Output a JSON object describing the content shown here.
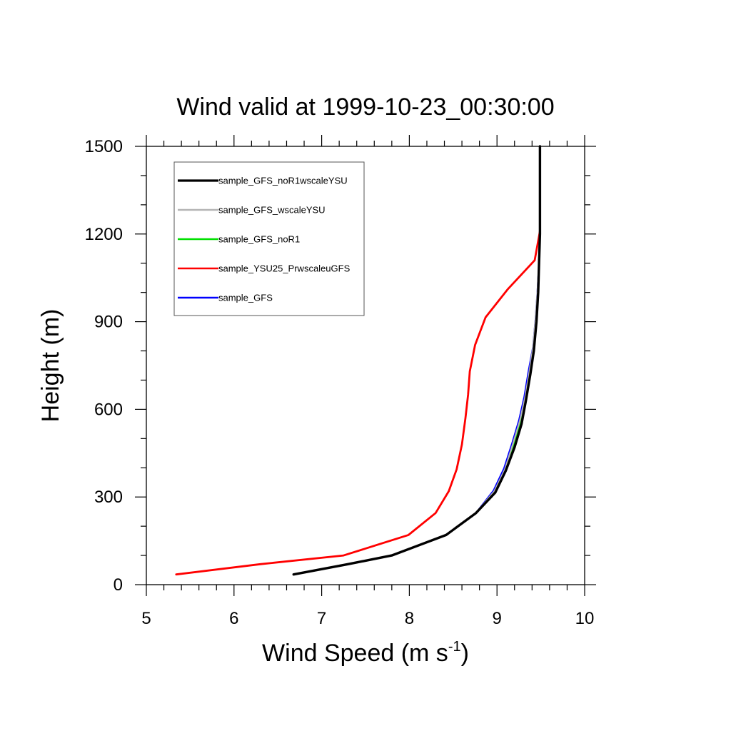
{
  "chart_data": {
    "type": "line",
    "title": "Wind valid at 1999-10-23_00:30:00",
    "xlabel_main": "Wind Speed (m s",
    "xlabel_sup": "-1",
    "xlabel_end": ")",
    "ylabel": "Height (m)",
    "xlim": [
      5,
      10
    ],
    "ylim": [
      0,
      1500
    ],
    "xticks": [
      "5",
      "6",
      "7",
      "8",
      "9",
      "10"
    ],
    "yticks": [
      "0",
      "300",
      "600",
      "900",
      "1200",
      "1500"
    ],
    "legend_position": "top-left",
    "series": [
      {
        "name": "sample_GFS_noR1wscaleYSU",
        "color": "#000000",
        "points": [
          [
            6.68,
            35
          ],
          [
            7.3,
            70
          ],
          [
            7.8,
            100
          ],
          [
            8.42,
            170
          ],
          [
            8.76,
            245
          ],
          [
            8.98,
            315
          ],
          [
            9.1,
            390
          ],
          [
            9.2,
            470
          ],
          [
            9.28,
            550
          ],
          [
            9.33,
            630
          ],
          [
            9.38,
            720
          ],
          [
            9.42,
            800
          ],
          [
            9.45,
            900
          ],
          [
            9.47,
            1000
          ],
          [
            9.48,
            1100
          ],
          [
            9.49,
            1200
          ],
          [
            9.49,
            1300
          ],
          [
            9.49,
            1400
          ],
          [
            9.49,
            1500
          ]
        ]
      },
      {
        "name": "sample_GFS_wscaleYSU",
        "color": "#b4b4b4",
        "points": [
          [
            6.68,
            35
          ],
          [
            7.3,
            70
          ],
          [
            7.8,
            100
          ],
          [
            8.42,
            170
          ],
          [
            8.76,
            245
          ],
          [
            8.97,
            320
          ],
          [
            9.09,
            395
          ],
          [
            9.18,
            480
          ],
          [
            9.26,
            560
          ],
          [
            9.32,
            640
          ],
          [
            9.37,
            730
          ],
          [
            9.41,
            810
          ],
          [
            9.44,
            910
          ],
          [
            9.46,
            1000
          ],
          [
            9.48,
            1100
          ],
          [
            9.49,
            1200
          ]
        ]
      },
      {
        "name": "sample_GFS_noR1",
        "color": "#00e000",
        "points": [
          [
            6.68,
            35
          ],
          [
            7.3,
            70
          ],
          [
            7.8,
            100
          ],
          [
            8.42,
            170
          ],
          [
            8.76,
            245
          ],
          [
            8.98,
            318
          ],
          [
            9.1,
            392
          ],
          [
            9.19,
            475
          ],
          [
            9.27,
            555
          ],
          [
            9.33,
            635
          ],
          [
            9.38,
            725
          ],
          [
            9.42,
            805
          ],
          [
            9.45,
            905
          ],
          [
            9.47,
            1000
          ],
          [
            9.48,
            1100
          ],
          [
            9.49,
            1200
          ]
        ]
      },
      {
        "name": "sample_YSU25_PrwscaleuGFS",
        "color": "#ff0000",
        "points": [
          [
            5.34,
            35
          ],
          [
            6.3,
            70
          ],
          [
            7.25,
            100
          ],
          [
            7.99,
            170
          ],
          [
            8.3,
            245
          ],
          [
            8.45,
            320
          ],
          [
            8.54,
            395
          ],
          [
            8.6,
            480
          ],
          [
            8.64,
            570
          ],
          [
            8.67,
            650
          ],
          [
            8.69,
            730
          ],
          [
            8.75,
            820
          ],
          [
            8.87,
            915
          ],
          [
            9.12,
            1010
          ],
          [
            9.43,
            1110
          ],
          [
            9.49,
            1210
          ]
        ]
      },
      {
        "name": "sample_GFS",
        "color": "#0000ff",
        "points": [
          [
            6.68,
            35
          ],
          [
            7.3,
            70
          ],
          [
            7.8,
            100
          ],
          [
            8.42,
            170
          ],
          [
            8.76,
            245
          ],
          [
            8.96,
            322
          ],
          [
            9.08,
            398
          ],
          [
            9.17,
            482
          ],
          [
            9.25,
            562
          ],
          [
            9.31,
            642
          ],
          [
            9.36,
            732
          ],
          [
            9.41,
            812
          ],
          [
            9.44,
            912
          ],
          [
            9.46,
            1000
          ],
          [
            9.48,
            1100
          ],
          [
            9.49,
            1200
          ]
        ]
      }
    ]
  }
}
